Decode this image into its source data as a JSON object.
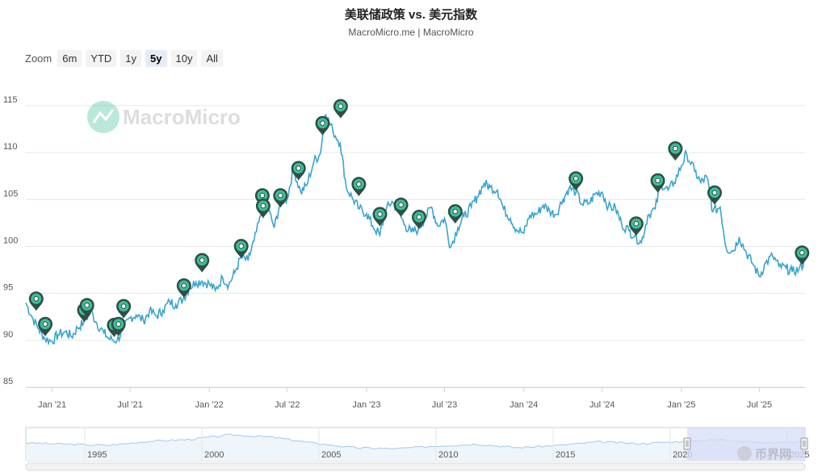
{
  "title": "美联储政策 vs. 美元指数",
  "subtitle": "MacroMicro.me | MacroMicro",
  "watermark": "MacroMicro",
  "corner_watermark": "币界网",
  "zoom": {
    "label": "Zoom",
    "options": [
      "6m",
      "YTD",
      "1y",
      "5y",
      "10y",
      "All"
    ],
    "selected": "5y"
  },
  "colors": {
    "line": "#3aa4d0",
    "marker_fill": "#3dbf9b",
    "marker_stroke": "#2e4f45",
    "grid": "#e6e6e6",
    "navigator_fill": "#d6dcf8",
    "navigator_line": "#a8c8ea"
  },
  "chart_data": {
    "type": "line",
    "title": "美联储政策 vs. 美元指数",
    "ylim": [
      85,
      118
    ],
    "y_ticks": [
      85,
      90,
      95,
      100,
      105,
      110,
      115
    ],
    "xlim": [
      "2020-11-01",
      "2025-10-15"
    ],
    "x_ticks": [
      {
        "date": "2021-01-01",
        "label": "Jan '21"
      },
      {
        "date": "2021-07-01",
        "label": "Jul '21"
      },
      {
        "date": "2022-01-01",
        "label": "Jan '22"
      },
      {
        "date": "2022-07-01",
        "label": "Jul '22"
      },
      {
        "date": "2023-01-01",
        "label": "Jan '23"
      },
      {
        "date": "2023-07-01",
        "label": "Jul '23"
      },
      {
        "date": "2024-01-01",
        "label": "Jan '24"
      },
      {
        "date": "2024-07-01",
        "label": "Jul '24"
      },
      {
        "date": "2025-01-01",
        "label": "Jan '25"
      },
      {
        "date": "2025-07-01",
        "label": "Jul '25"
      }
    ],
    "grid": true,
    "series": [
      {
        "points": [
          [
            "2020-11-01",
            94.0
          ],
          [
            "2020-11-15",
            92.5
          ],
          [
            "2020-12-01",
            91.2
          ],
          [
            "2020-12-15",
            90.2
          ],
          [
            "2021-01-01",
            89.9
          ],
          [
            "2021-01-15",
            90.6
          ],
          [
            "2021-02-01",
            90.9
          ],
          [
            "2021-02-15",
            90.4
          ],
          [
            "2021-03-01",
            91.3
          ],
          [
            "2021-03-15",
            91.9
          ],
          [
            "2021-04-01",
            93.1
          ],
          [
            "2021-04-15",
            91.8
          ],
          [
            "2021-05-01",
            90.8
          ],
          [
            "2021-05-15",
            90.1
          ],
          [
            "2021-06-01",
            90.0
          ],
          [
            "2021-06-15",
            91.2
          ],
          [
            "2021-07-01",
            92.4
          ],
          [
            "2021-07-15",
            92.7
          ],
          [
            "2021-08-01",
            92.1
          ],
          [
            "2021-08-15",
            93.1
          ],
          [
            "2021-09-01",
            92.6
          ],
          [
            "2021-09-15",
            93.2
          ],
          [
            "2021-10-01",
            94.1
          ],
          [
            "2021-10-15",
            93.8
          ],
          [
            "2021-11-01",
            94.4
          ],
          [
            "2021-11-15",
            95.6
          ],
          [
            "2021-12-01",
            96.2
          ],
          [
            "2021-12-15",
            96.3
          ],
          [
            "2022-01-01",
            96.0
          ],
          [
            "2022-01-15",
            95.3
          ],
          [
            "2022-02-01",
            96.7
          ],
          [
            "2022-02-15",
            95.9
          ],
          [
            "2022-03-01",
            97.2
          ],
          [
            "2022-03-15",
            98.8
          ],
          [
            "2022-04-01",
            98.5
          ],
          [
            "2022-04-15",
            100.6
          ],
          [
            "2022-05-01",
            103.3
          ],
          [
            "2022-05-15",
            104.3
          ],
          [
            "2022-06-01",
            102.0
          ],
          [
            "2022-06-15",
            104.8
          ],
          [
            "2022-07-01",
            105.1
          ],
          [
            "2022-07-15",
            108.3
          ],
          [
            "2022-08-01",
            105.8
          ],
          [
            "2022-08-15",
            106.5
          ],
          [
            "2022-09-01",
            109.1
          ],
          [
            "2022-09-15",
            109.8
          ],
          [
            "2022-09-28",
            114.1
          ],
          [
            "2022-10-15",
            112.3
          ],
          [
            "2022-11-01",
            111.0
          ],
          [
            "2022-11-15",
            106.3
          ],
          [
            "2022-12-01",
            105.0
          ],
          [
            "2022-12-15",
            104.0
          ],
          [
            "2023-01-01",
            103.5
          ],
          [
            "2023-01-15",
            102.2
          ],
          [
            "2023-02-01",
            101.2
          ],
          [
            "2023-02-15",
            103.9
          ],
          [
            "2023-03-01",
            104.8
          ],
          [
            "2023-03-15",
            103.8
          ],
          [
            "2023-04-01",
            102.2
          ],
          [
            "2023-04-15",
            101.5
          ],
          [
            "2023-05-01",
            101.8
          ],
          [
            "2023-05-15",
            102.9
          ],
          [
            "2023-06-01",
            104.2
          ],
          [
            "2023-06-15",
            102.2
          ],
          [
            "2023-07-01",
            103.0
          ],
          [
            "2023-07-15",
            99.9
          ],
          [
            "2023-08-01",
            102.0
          ],
          [
            "2023-08-15",
            103.2
          ],
          [
            "2023-09-01",
            104.2
          ],
          [
            "2023-09-15",
            105.3
          ],
          [
            "2023-10-01",
            106.7
          ],
          [
            "2023-10-15",
            106.3
          ],
          [
            "2023-11-01",
            106.0
          ],
          [
            "2023-11-15",
            104.0
          ],
          [
            "2023-12-01",
            103.0
          ],
          [
            "2023-12-15",
            101.8
          ],
          [
            "2024-01-01",
            101.4
          ],
          [
            "2024-01-15",
            103.3
          ],
          [
            "2024-02-01",
            103.5
          ],
          [
            "2024-02-15",
            104.4
          ],
          [
            "2024-03-01",
            103.8
          ],
          [
            "2024-03-15",
            103.4
          ],
          [
            "2024-04-01",
            105.0
          ],
          [
            "2024-04-15",
            106.2
          ],
          [
            "2024-05-01",
            105.8
          ],
          [
            "2024-05-15",
            104.5
          ],
          [
            "2024-06-01",
            104.6
          ],
          [
            "2024-06-15",
            105.6
          ],
          [
            "2024-07-01",
            105.8
          ],
          [
            "2024-07-15",
            104.2
          ],
          [
            "2024-08-01",
            104.1
          ],
          [
            "2024-08-15",
            102.4
          ],
          [
            "2024-09-01",
            101.7
          ],
          [
            "2024-09-15",
            101.1
          ],
          [
            "2024-09-30",
            100.4
          ],
          [
            "2024-10-15",
            103.3
          ],
          [
            "2024-11-01",
            104.0
          ],
          [
            "2024-11-15",
            106.7
          ],
          [
            "2024-12-01",
            106.0
          ],
          [
            "2024-12-15",
            106.8
          ],
          [
            "2025-01-01",
            108.6
          ],
          [
            "2025-01-13",
            109.9
          ],
          [
            "2025-02-01",
            108.0
          ],
          [
            "2025-02-15",
            106.8
          ],
          [
            "2025-03-01",
            107.4
          ],
          [
            "2025-03-15",
            103.7
          ],
          [
            "2025-04-01",
            104.2
          ],
          [
            "2025-04-15",
            99.8
          ],
          [
            "2025-05-01",
            99.5
          ],
          [
            "2025-05-15",
            101.0
          ],
          [
            "2025-06-01",
            99.3
          ],
          [
            "2025-06-15",
            98.2
          ],
          [
            "2025-07-01",
            96.8
          ],
          [
            "2025-07-15",
            98.2
          ],
          [
            "2025-08-01",
            99.0
          ],
          [
            "2025-08-15",
            97.9
          ],
          [
            "2025-09-01",
            97.7
          ],
          [
            "2025-09-15",
            97.3
          ],
          [
            "2025-10-01",
            97.6
          ],
          [
            "2025-10-15",
            98.4
          ]
        ]
      }
    ],
    "markers": [
      [
        "2020-11-25",
        94.0
      ],
      [
        "2020-12-16",
        91.3
      ],
      [
        "2021-03-17",
        92.8
      ],
      [
        "2021-03-23",
        93.3
      ],
      [
        "2021-05-25",
        91.2
      ],
      [
        "2021-06-04",
        91.3
      ],
      [
        "2021-06-16",
        93.2
      ],
      [
        "2021-11-03",
        95.4
      ],
      [
        "2021-12-15",
        98.1
      ],
      [
        "2022-03-16",
        99.6
      ],
      [
        "2022-05-04",
        105.0
      ],
      [
        "2022-05-06",
        103.9
      ],
      [
        "2022-06-15",
        105.0
      ],
      [
        "2022-07-27",
        107.9
      ],
      [
        "2022-09-21",
        112.7
      ],
      [
        "2022-11-02",
        114.5
      ],
      [
        "2022-12-14",
        106.2
      ],
      [
        "2023-02-01",
        103.0
      ],
      [
        "2023-03-22",
        104.0
      ],
      [
        "2023-05-03",
        102.7
      ],
      [
        "2023-07-26",
        103.3
      ],
      [
        "2024-05-01",
        106.8
      ],
      [
        "2024-09-18",
        102.0
      ],
      [
        "2024-11-07",
        106.6
      ],
      [
        "2024-12-18",
        110.0
      ],
      [
        "2025-03-19",
        105.3
      ],
      [
        "2025-10-08",
        98.9
      ]
    ]
  },
  "navigator": {
    "labels": [
      "1995",
      "2000",
      "2005",
      "2010",
      "2015",
      "2020",
      "2025"
    ]
  }
}
